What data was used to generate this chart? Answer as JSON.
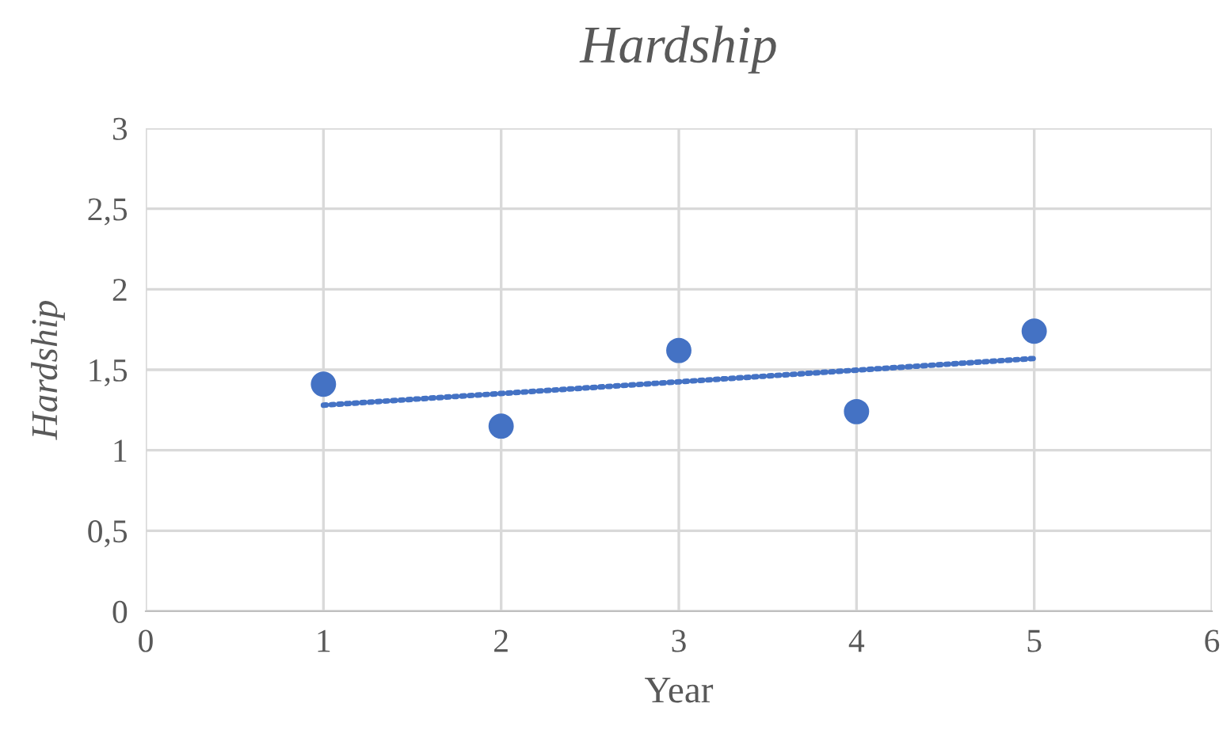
{
  "chart_data": {
    "type": "scatter",
    "title": "Hardship",
    "xlabel": "Year",
    "ylabel": "Hardship",
    "series": [
      {
        "color": "#4472c4",
        "x": [
          1,
          2,
          3,
          4,
          5
        ],
        "values": [
          1.41,
          1.15,
          1.62,
          1.24,
          1.74
        ],
        "marker": "circle"
      },
      {
        "type": "line",
        "color": "#4472c4",
        "x": [
          1,
          5
        ],
        "values": [
          1.28,
          1.57
        ],
        "line_style": "dotted",
        "marker": "none"
      }
    ],
    "xlim": [
      0,
      6
    ],
    "xticks": [
      0,
      1,
      2,
      3,
      4,
      5,
      6
    ],
    "ylim": [
      0,
      3
    ],
    "yticks": [
      0,
      {
        "value": 0.5,
        "label": "0,5"
      },
      1,
      {
        "value": 1.5,
        "label": "1,5"
      },
      2,
      {
        "value": 2.5,
        "label": "2,5"
      },
      3
    ],
    "grid": true,
    "legend": false
  }
}
